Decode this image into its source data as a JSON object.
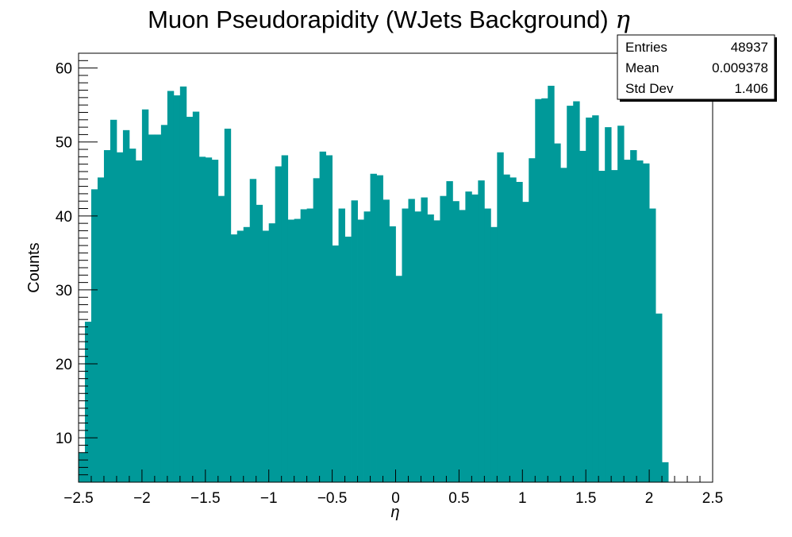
{
  "chart_data": {
    "type": "bar",
    "title": "Muon Pseudorapidity (WJets Background)",
    "title_symbol": "η",
    "xlabel": "η",
    "ylabel": "Counts",
    "xlim": [
      -2.5,
      2.5
    ],
    "ylim": [
      4,
      62
    ],
    "x_ticks": [
      {
        "value": -2.5,
        "label": "−2.5"
      },
      {
        "value": -2,
        "label": "−2"
      },
      {
        "value": -1.5,
        "label": "−1.5"
      },
      {
        "value": -1,
        "label": "−1"
      },
      {
        "value": -0.5,
        "label": "−0.5"
      },
      {
        "value": 0,
        "label": "0"
      },
      {
        "value": 0.5,
        "label": "0.5"
      },
      {
        "value": 1,
        "label": "1"
      },
      {
        "value": 1.5,
        "label": "1.5"
      },
      {
        "value": 2,
        "label": "2"
      },
      {
        "value": 2.5,
        "label": "2.5"
      }
    ],
    "y_ticks": [
      {
        "value": 10,
        "label": "10"
      },
      {
        "value": 20,
        "label": "20"
      },
      {
        "value": 30,
        "label": "30"
      },
      {
        "value": 40,
        "label": "40"
      },
      {
        "value": 50,
        "label": "50"
      },
      {
        "value": 60,
        "label": "60"
      }
    ],
    "bin_low": -2.5,
    "bin_width": 0.05,
    "values": [
      8.0,
      25.7,
      43.6,
      45.2,
      48.9,
      53.0,
      48.6,
      51.6,
      49.1,
      47.5,
      54.4,
      51.0,
      51.0,
      52.3,
      56.9,
      56.3,
      57.5,
      53.4,
      54.1,
      48.0,
      47.9,
      47.6,
      42.7,
      51.8,
      37.5,
      38.0,
      38.5,
      45.0,
      41.5,
      38.0,
      39.0,
      46.7,
      48.2,
      39.5,
      39.6,
      40.9,
      41.0,
      45.1,
      48.7,
      48.2,
      36.0,
      41.0,
      37.2,
      42.1,
      39.5,
      40.6,
      45.7,
      45.5,
      42.2,
      38.6,
      31.9,
      41.0,
      42.3,
      40.6,
      42.5,
      40.2,
      39.4,
      42.7,
      44.7,
      42.0,
      40.8,
      43.3,
      42.9,
      44.8,
      41.0,
      38.5,
      48.6,
      45.6,
      45.2,
      44.6,
      41.9,
      47.8,
      55.8,
      55.9,
      57.6,
      49.8,
      46.5,
      54.9,
      55.5,
      48.8,
      53.3,
      53.6,
      46.1,
      52.0,
      46.2,
      52.2,
      47.6,
      48.9,
      47.5,
      47.1,
      41.0,
      26.8,
      6.7
    ]
  },
  "bar_color": "#009999",
  "stats": {
    "rows": [
      {
        "name": "Entries",
        "value": "48937"
      },
      {
        "name": "Mean",
        "value": "0.009378"
      },
      {
        "name": "Std Dev",
        "value": "1.406"
      }
    ]
  }
}
